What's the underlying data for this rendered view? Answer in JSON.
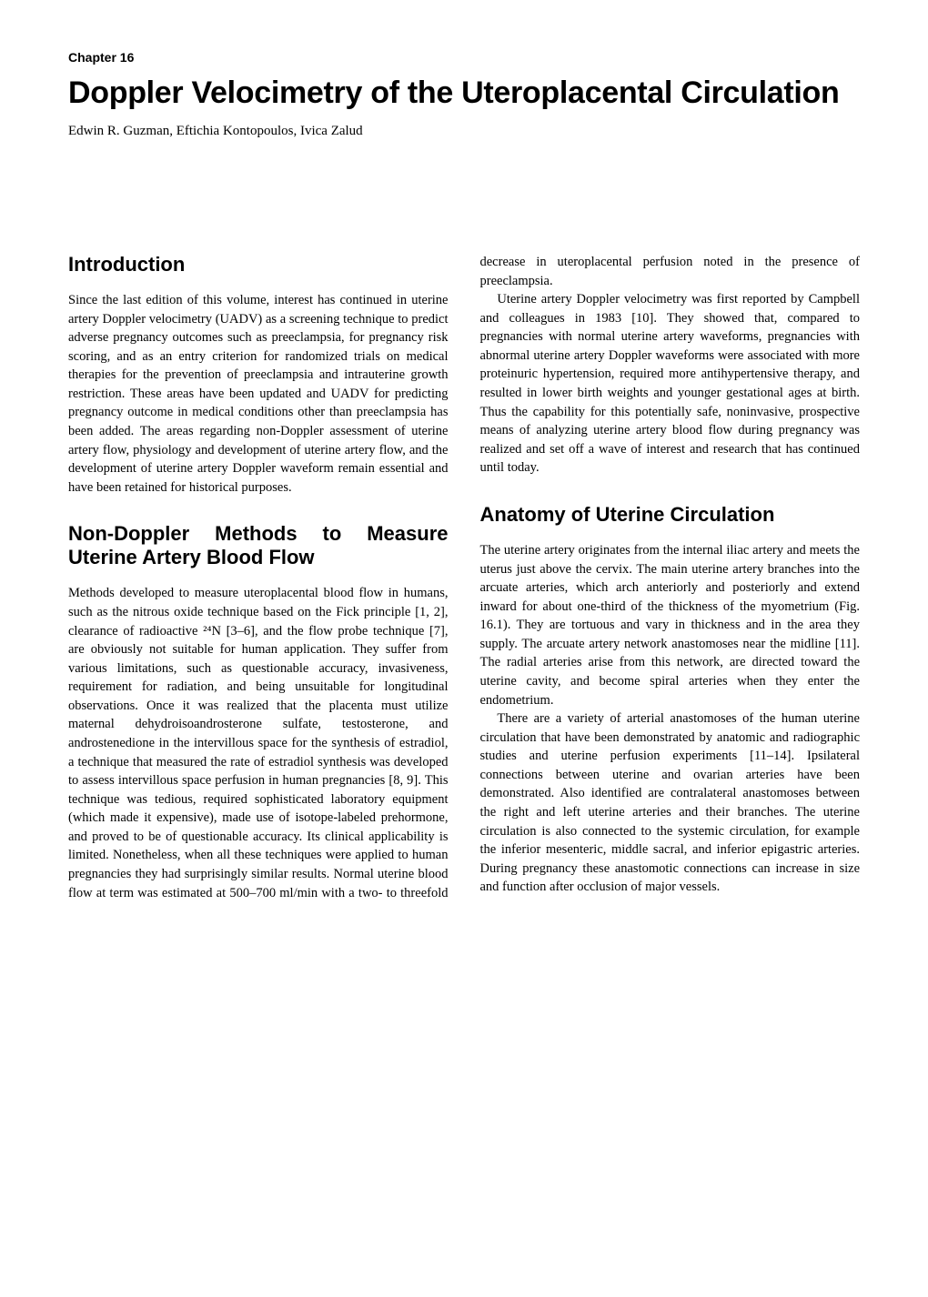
{
  "chapter": {
    "label": "Chapter 16",
    "title": "Doppler Velocimetry of the Uteroplacental Circulation",
    "authors": "Edwin R. Guzman, Eftichia Kontopoulos, Ivica Zalud"
  },
  "sections": [
    {
      "heading": "Introduction",
      "paragraphs": [
        "Since the last edition of this volume, interest has continued in uterine artery Doppler velocimetry (UADV) as a screening technique to predict adverse pregnancy outcomes such as preeclampsia, for pregnancy risk scoring, and as an entry criterion for randomized trials on medical therapies for the prevention of preeclampsia and intrauterine growth restriction. These areas have been updated and UADV for predicting pregnancy outcome in medical conditions other than preeclampsia has been added. The areas regarding non-Doppler assessment of uterine artery flow, physiology and development of uterine artery flow, and the development of uterine artery Doppler waveform remain essential and have been retained for historical purposes."
      ]
    },
    {
      "heading": "Non-Doppler Methods to Measure Uterine Artery Blood Flow",
      "paragraphs": [
        "Methods developed to measure uteroplacental blood flow in humans, such as the nitrous oxide technique based on the Fick principle [1, 2], clearance of radioactive ²⁴N [3–6], and the flow probe technique [7], are obviously not suitable for human application. They suffer from various limitations, such as questionable accuracy, invasiveness, requirement for radiation, and being unsuitable for longitudinal observations. Once it was realized that the placenta must utilize maternal dehydroisoandrosterone sulfate, testosterone, and androstenedione in the intervillous space for the synthesis of estradiol, a technique that measured the rate of estradiol synthesis was developed to assess intervillous space perfusion in human pregnancies [8, 9]. This technique was tedious, required sophisticated laboratory equipment (which made it expensive), made use of isotope-labeled prehormone, and proved to be of questionable accuracy. Its clinical applicability is limited. Nonetheless, when all these techniques were applied to human pregnancies they had surprisingly similar results. Normal uterine blood flow at term was estimated at 500–700 ml/min with a two- to threefold decrease in uteroplacental perfusion noted in the presence of preeclampsia.",
        "Uterine artery Doppler velocimetry was first reported by Campbell and colleagues in 1983 [10]. They showed that, compared to pregnancies with normal uterine artery waveforms, pregnancies with abnormal uterine artery Doppler waveforms were associated with more proteinuric hypertension, required more antihypertensive therapy, and resulted in lower birth weights and younger gestational ages at birth. Thus the capability for this potentially safe, noninvasive, prospective means of analyzing uterine artery blood flow during pregnancy was realized and set off a wave of interest and research that has continued until today."
      ]
    },
    {
      "heading": "Anatomy of Uterine Circulation",
      "paragraphs": [
        "The uterine artery originates from the internal iliac artery and meets the uterus just above the cervix. The main uterine artery branches into the arcuate arteries, which arch anteriorly and posteriorly and extend inward for about one-third of the thickness of the myometrium (Fig. 16.1). They are tortuous and vary in thickness and in the area they supply. The arcuate artery network anastomoses near the midline [11]. The radial arteries arise from this network, are directed toward the uterine cavity, and become spiral arteries when they enter the endometrium.",
        "There are a variety of arterial anastomoses of the human uterine circulation that have been demonstrated by anatomic and radiographic studies and uterine perfusion experiments [11–14]. Ipsilateral connections between uterine and ovarian arteries have been demonstrated. Also identified are contralateral anastomoses between the right and left uterine arteries and their branches. The uterine circulation is also connected to the systemic circulation, for example the inferior mesenteric, middle sacral, and inferior epigastric arteries. During pregnancy these anastomotic connections can increase in size and function after occlusion of major vessels."
      ]
    }
  ]
}
